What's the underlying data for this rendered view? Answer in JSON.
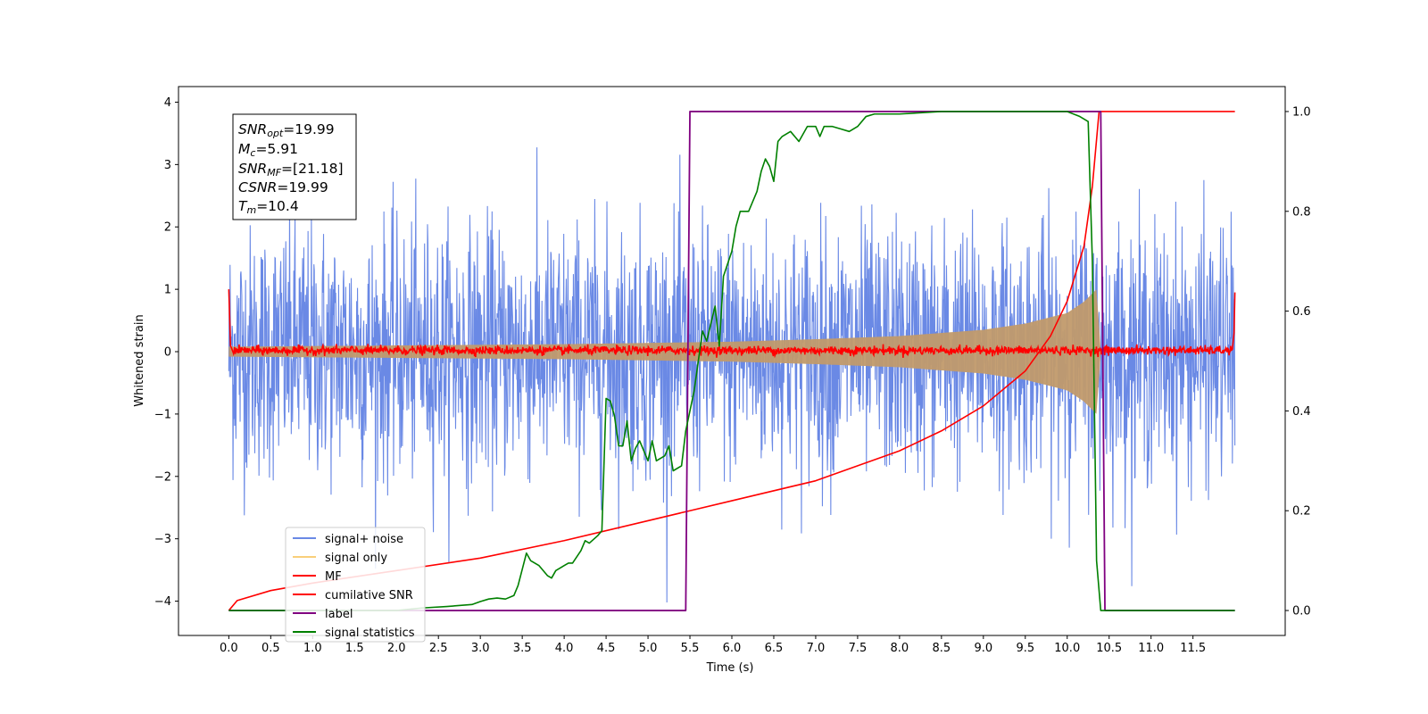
{
  "chart_data": {
    "type": "line",
    "xlabel": "Time (s)",
    "ylabel": "Whitened strain",
    "xlim": [
      -0.6,
      12.6
    ],
    "ylim": [
      -4.55,
      4.25
    ],
    "y2lim": [
      -0.05,
      1.05
    ],
    "x_ticks": [
      "0.0",
      "0.5",
      "1.0",
      "1.5",
      "2.0",
      "2.5",
      "3.0",
      "3.5",
      "4.0",
      "4.5",
      "5.0",
      "5.5",
      "6.0",
      "6.5",
      "7.0",
      "7.5",
      "8.0",
      "8.5",
      "9.0",
      "9.5",
      "10.0",
      "10.5",
      "11.0",
      "11.5"
    ],
    "y_ticks": [
      "−4",
      "−3",
      "−2",
      "−1",
      "0",
      "1",
      "2",
      "3",
      "4"
    ],
    "y2_ticks": [
      "0.0",
      "0.2",
      "0.4",
      "0.6",
      "0.8",
      "1.0"
    ],
    "info_box": {
      "line1": {
        "sym": "SNR",
        "sub": "opt",
        "val": "=19.99"
      },
      "line2": {
        "sym": "M",
        "sub": "c",
        "val": "=5.91"
      },
      "line3": {
        "sym": "SNR",
        "sub": "MF",
        "val": "=[21.18]"
      },
      "line4": {
        "sym": "CSNR",
        "sub": "",
        "val": "=19.99"
      },
      "line5": {
        "sym": "T",
        "sub": "m",
        "val": "=10.4"
      }
    },
    "legend": {
      "location": "lower-left",
      "entries": [
        {
          "label": "signal+ noise",
          "color": "#6a89e5"
        },
        {
          "label": "signal only",
          "color": "#f9cf7a"
        },
        {
          "label": "MF",
          "color": "#ff0000"
        },
        {
          "label": "cumilative SNR",
          "color": "#ff0000"
        },
        {
          "label": "label",
          "color": "#800080"
        },
        {
          "label": "signal statistics",
          "color": "#008000"
        }
      ]
    },
    "series": [
      {
        "name": "signal+ noise",
        "axis": "left",
        "description_noise_sigma": 1.0,
        "t_start": 0.0,
        "t_end": 12.0
      },
      {
        "name": "signal only",
        "axis": "left",
        "envelope": [
          [
            0.0,
            0.08
          ],
          [
            2.0,
            0.1
          ],
          [
            4.0,
            0.12
          ],
          [
            5.0,
            0.14
          ],
          [
            6.0,
            0.16
          ],
          [
            7.0,
            0.2
          ],
          [
            8.0,
            0.25
          ],
          [
            9.0,
            0.35
          ],
          [
            9.5,
            0.45
          ],
          [
            10.0,
            0.62
          ],
          [
            10.2,
            0.8
          ],
          [
            10.35,
            1.0
          ],
          [
            10.4,
            0.0
          ]
        ]
      },
      {
        "name": "MF",
        "axis": "left",
        "points": [
          [
            0.0,
            1.0
          ],
          [
            0.02,
            0.1
          ],
          [
            0.05,
            0.05
          ],
          [
            11.97,
            0.05
          ],
          [
            11.99,
            0.3
          ],
          [
            12.0,
            0.95
          ]
        ]
      },
      {
        "name": "cumilative SNR",
        "axis": "right",
        "points": [
          [
            0.0,
            0.0
          ],
          [
            0.1,
            0.02
          ],
          [
            0.5,
            0.04
          ],
          [
            1.0,
            0.055
          ],
          [
            2.0,
            0.08
          ],
          [
            3.0,
            0.105
          ],
          [
            4.0,
            0.14
          ],
          [
            5.0,
            0.18
          ],
          [
            5.5,
            0.2
          ],
          [
            6.0,
            0.22
          ],
          [
            7.0,
            0.26
          ],
          [
            7.5,
            0.29
          ],
          [
            8.0,
            0.32
          ],
          [
            8.5,
            0.36
          ],
          [
            9.0,
            0.41
          ],
          [
            9.5,
            0.48
          ],
          [
            9.8,
            0.55
          ],
          [
            10.0,
            0.62
          ],
          [
            10.2,
            0.73
          ],
          [
            10.3,
            0.85
          ],
          [
            10.38,
            1.0
          ],
          [
            12.0,
            1.0
          ]
        ]
      },
      {
        "name": "label",
        "axis": "right",
        "points": [
          [
            0.0,
            0.0
          ],
          [
            5.45,
            0.0
          ],
          [
            5.5,
            1.0
          ],
          [
            10.4,
            1.0
          ],
          [
            10.45,
            0.0
          ],
          [
            12.0,
            0.0
          ]
        ]
      },
      {
        "name": "signal statistics",
        "axis": "right",
        "points": [
          [
            0.0,
            0.0
          ],
          [
            1.0,
            0.0
          ],
          [
            2.0,
            0.0
          ],
          [
            2.3,
            0.005
          ],
          [
            2.6,
            0.008
          ],
          [
            2.9,
            0.012
          ],
          [
            3.0,
            0.018
          ],
          [
            3.1,
            0.023
          ],
          [
            3.2,
            0.025
          ],
          [
            3.3,
            0.023
          ],
          [
            3.4,
            0.03
          ],
          [
            3.45,
            0.05
          ],
          [
            3.55,
            0.115
          ],
          [
            3.6,
            0.1
          ],
          [
            3.7,
            0.09
          ],
          [
            3.8,
            0.07
          ],
          [
            3.85,
            0.065
          ],
          [
            3.9,
            0.08
          ],
          [
            4.0,
            0.09
          ],
          [
            4.05,
            0.095
          ],
          [
            4.1,
            0.095
          ],
          [
            4.2,
            0.12
          ],
          [
            4.25,
            0.14
          ],
          [
            4.3,
            0.135
          ],
          [
            4.4,
            0.15
          ],
          [
            4.45,
            0.16
          ],
          [
            4.5,
            0.425
          ],
          [
            4.55,
            0.42
          ],
          [
            4.6,
            0.39
          ],
          [
            4.65,
            0.33
          ],
          [
            4.7,
            0.33
          ],
          [
            4.75,
            0.38
          ],
          [
            4.8,
            0.3
          ],
          [
            4.85,
            0.325
          ],
          [
            4.9,
            0.34
          ],
          [
            5.0,
            0.3
          ],
          [
            5.05,
            0.34
          ],
          [
            5.1,
            0.3
          ],
          [
            5.2,
            0.31
          ],
          [
            5.25,
            0.33
          ],
          [
            5.3,
            0.28
          ],
          [
            5.4,
            0.29
          ],
          [
            5.45,
            0.36
          ],
          [
            5.55,
            0.44
          ],
          [
            5.6,
            0.5
          ],
          [
            5.65,
            0.56
          ],
          [
            5.7,
            0.54
          ],
          [
            5.8,
            0.61
          ],
          [
            5.85,
            0.53
          ],
          [
            5.9,
            0.67
          ],
          [
            6.0,
            0.72
          ],
          [
            6.05,
            0.77
          ],
          [
            6.1,
            0.8
          ],
          [
            6.2,
            0.8
          ],
          [
            6.3,
            0.84
          ],
          [
            6.35,
            0.88
          ],
          [
            6.4,
            0.905
          ],
          [
            6.45,
            0.89
          ],
          [
            6.5,
            0.86
          ],
          [
            6.55,
            0.94
          ],
          [
            6.6,
            0.95
          ],
          [
            6.7,
            0.96
          ],
          [
            6.8,
            0.94
          ],
          [
            6.9,
            0.97
          ],
          [
            7.0,
            0.97
          ],
          [
            7.05,
            0.95
          ],
          [
            7.1,
            0.97
          ],
          [
            7.2,
            0.97
          ],
          [
            7.3,
            0.965
          ],
          [
            7.4,
            0.96
          ],
          [
            7.5,
            0.97
          ],
          [
            7.6,
            0.99
          ],
          [
            7.7,
            0.995
          ],
          [
            8.0,
            0.995
          ],
          [
            8.5,
            1.0
          ],
          [
            9.0,
            1.0
          ],
          [
            9.5,
            1.0
          ],
          [
            10.0,
            1.0
          ],
          [
            10.15,
            0.99
          ],
          [
            10.25,
            0.98
          ],
          [
            10.3,
            0.7
          ],
          [
            10.35,
            0.1
          ],
          [
            10.4,
            0.0
          ],
          [
            12.0,
            0.0
          ]
        ]
      }
    ]
  },
  "colors": {
    "noise": "#6a89e5",
    "signal_fill": "#c19a6b",
    "signal_line": "#f9cf7a",
    "mf": "#ff0000",
    "label": "#800080",
    "statistics": "#008000"
  }
}
